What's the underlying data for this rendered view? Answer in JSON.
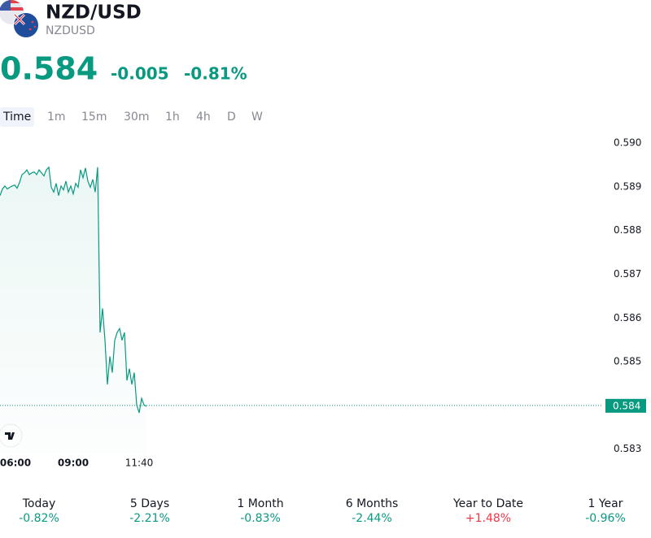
{
  "header": {
    "title": "NZD/USD",
    "symbol": "NZDUSD",
    "price": "0.584",
    "change": "-0.005",
    "change_percent": "-0.81%"
  },
  "intervals": [
    "Time",
    "1m",
    "15m",
    "30m",
    "1h",
    "4h",
    "D",
    "W"
  ],
  "chart_data": {
    "type": "line",
    "categories": [
      null,
      null,
      null,
      null,
      null,
      null,
      "06:00",
      null,
      null,
      null,
      null,
      null,
      null,
      null,
      null,
      null,
      null,
      null,
      null,
      null,
      null,
      null,
      null,
      null,
      null,
      null,
      null,
      null,
      null,
      null,
      "09:00",
      null,
      null,
      null,
      null,
      null,
      null,
      null,
      null,
      null,
      null,
      null,
      null,
      null,
      null,
      null,
      null,
      null,
      null,
      null,
      null,
      null,
      null,
      null,
      null,
      null,
      null,
      "11:40",
      null,
      null,
      null
    ],
    "series": [
      {
        "name": "NZDUSD",
        "color": "#089981",
        "values": [
          0.5888,
          0.58895,
          0.58902,
          0.58895,
          0.58899,
          0.58902,
          0.58904,
          0.58897,
          0.5891,
          0.58928,
          0.58932,
          0.58939,
          0.58928,
          0.58932,
          0.58934,
          0.58928,
          0.58939,
          0.58932,
          0.58925,
          0.58939,
          0.58945,
          0.58899,
          0.58888,
          0.58908,
          0.5888,
          0.58902,
          0.58893,
          0.58913,
          0.58888,
          0.58902,
          0.58884,
          0.58908,
          0.58899,
          0.58939,
          0.58921,
          0.58943,
          0.58913,
          0.58899,
          0.58917,
          0.58888,
          0.58945,
          0.58567,
          0.58622,
          0.58549,
          0.58448,
          0.58512,
          0.58475,
          0.58549,
          0.58567,
          0.58576,
          0.58549,
          0.58567,
          0.58457,
          0.58484,
          0.58448,
          0.58475,
          0.58401,
          0.58383,
          0.58416,
          0.58401,
          0.58398
        ]
      }
    ],
    "ylim": [
      0.5829,
      0.5903
    ],
    "yticks": [
      {
        "value": 0.583,
        "label": "0.583"
      },
      {
        "value": 0.584,
        "label": "0.584"
      },
      {
        "value": 0.585,
        "label": "0.585"
      },
      {
        "value": 0.586,
        "label": "0.586"
      },
      {
        "value": 0.587,
        "label": "0.587"
      },
      {
        "value": 0.588,
        "label": "0.588"
      },
      {
        "value": 0.589,
        "label": "0.589"
      },
      {
        "value": 0.59,
        "label": "0.590"
      }
    ],
    "price_line": {
      "value": 0.584,
      "label": "0.584"
    }
  },
  "performance": [
    {
      "label": "Today",
      "value": "-0.82%",
      "color": "#089981"
    },
    {
      "label": "5 Days",
      "value": "-2.21%",
      "color": "#089981"
    },
    {
      "label": "1 Month",
      "value": "-0.83%",
      "color": "#089981"
    },
    {
      "label": "6 Months",
      "value": "-2.44%",
      "color": "#089981"
    },
    {
      "label": "Year to Date",
      "value": "+1.48%",
      "color": "#f23645"
    },
    {
      "label": "1 Year",
      "value": "-0.96%",
      "color": "#089981"
    }
  ]
}
